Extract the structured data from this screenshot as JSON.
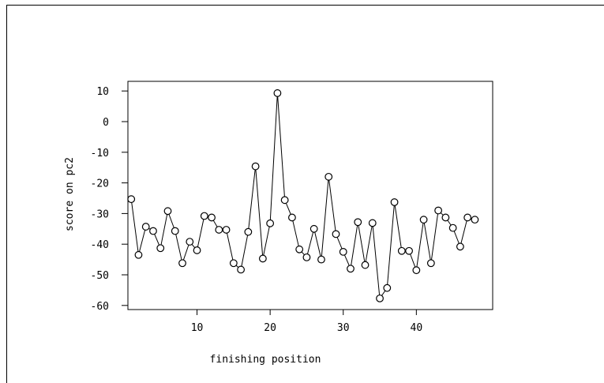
{
  "chart_data": {
    "type": "line",
    "title": "",
    "xlabel": "finishing position",
    "ylabel": "score on pc2",
    "xlim": [
      0,
      50
    ],
    "ylim": [
      -60,
      10
    ],
    "xticks": [
      10,
      20,
      30,
      40
    ],
    "yticks": [
      10,
      0,
      -10,
      -20,
      -30,
      -40,
      -50,
      -60
    ],
    "grid": false,
    "markers": "open-circle",
    "series": [
      {
        "name": "",
        "x": [
          1,
          2,
          3,
          4,
          5,
          6,
          7,
          8,
          9,
          10,
          11,
          12,
          13,
          14,
          15,
          16,
          17,
          18,
          19,
          20,
          21,
          22,
          23,
          24,
          25,
          26,
          27,
          28,
          29,
          30,
          31,
          32,
          33,
          34,
          35,
          36,
          37,
          38,
          39,
          40,
          41,
          42,
          43,
          44,
          45,
          46,
          47,
          48
        ],
        "y": [
          -25.3,
          -43.5,
          -34.3,
          -35.7,
          -41.3,
          -29.2,
          -35.7,
          -46.2,
          -39.2,
          -42.0,
          -30.8,
          -31.3,
          -35.3,
          -35.3,
          -46.2,
          -48.3,
          -36.0,
          -14.6,
          -44.7,
          -33.2,
          9.3,
          -25.6,
          -31.3,
          -41.7,
          -44.3,
          -35.0,
          -45.0,
          -18.0,
          -36.7,
          -42.5,
          -48.0,
          -32.8,
          -46.8,
          -33.1,
          -57.7,
          -54.3,
          -26.3,
          -42.2,
          -42.2,
          -48.5,
          -32.0,
          -46.2,
          -29.0,
          -31.3,
          -34.7,
          -40.8,
          -31.3,
          -32.0
        ]
      }
    ]
  }
}
